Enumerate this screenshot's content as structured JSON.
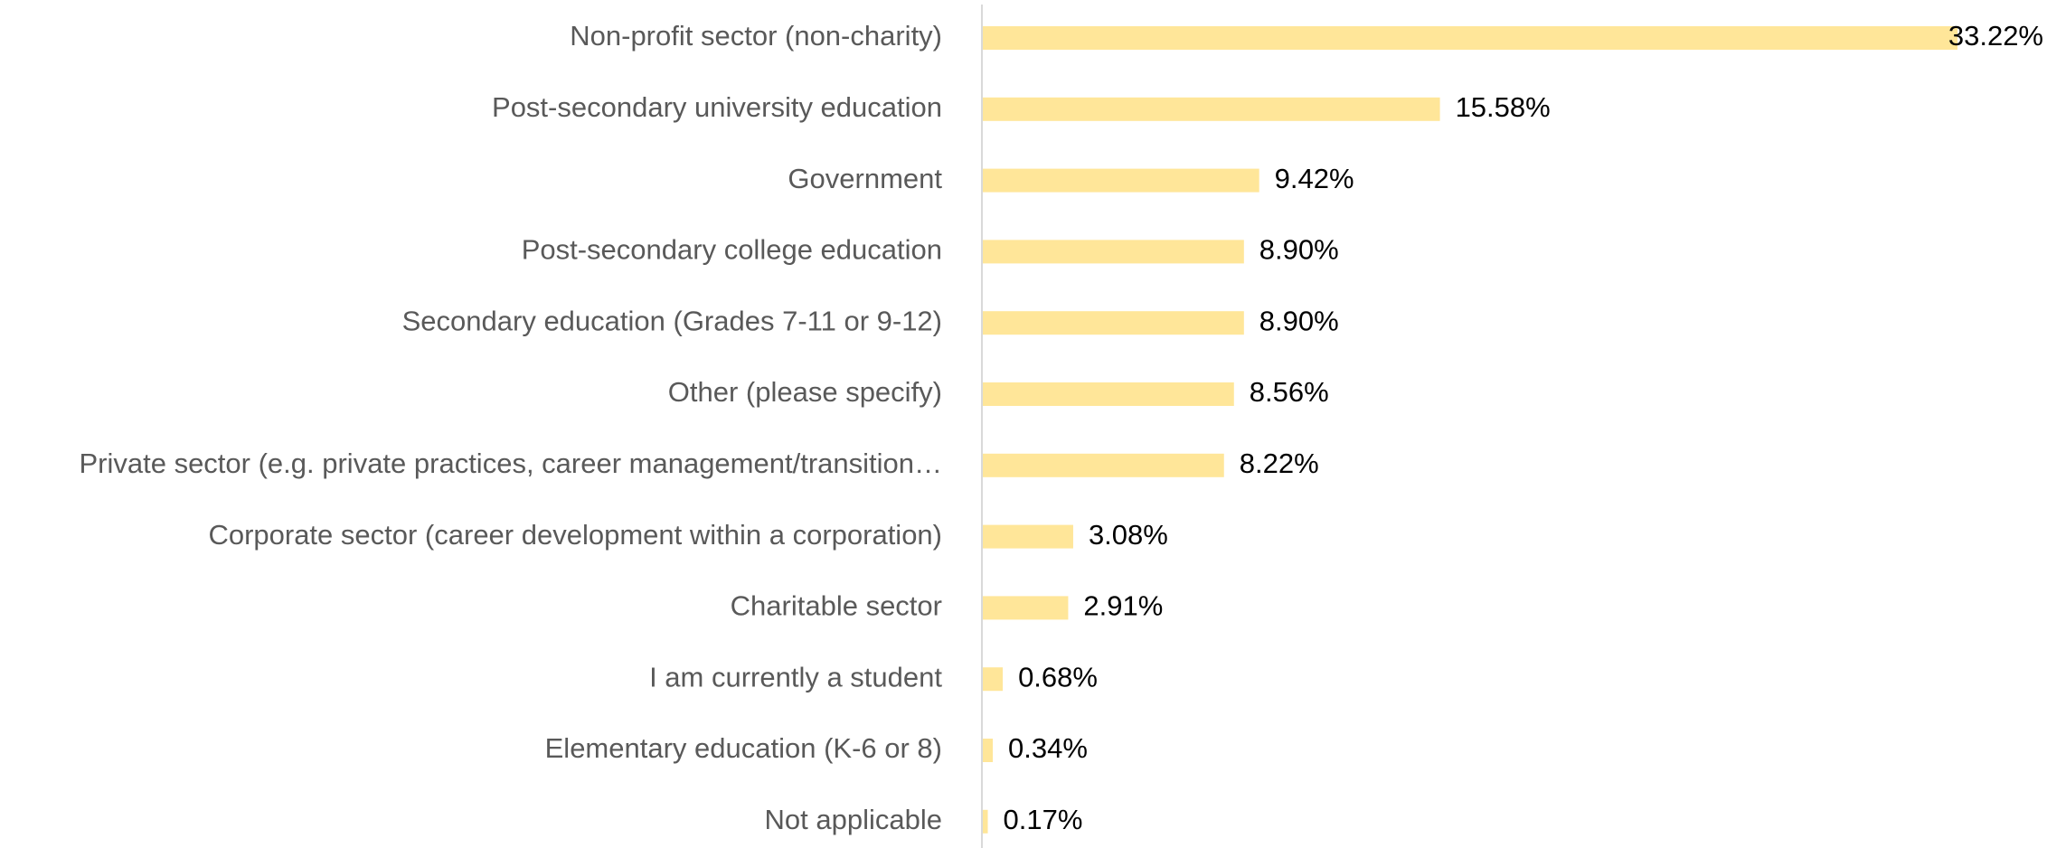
{
  "chart_data": {
    "type": "hbar",
    "categories": [
      "Non-profit sector (non-charity)",
      "Post-secondary university education",
      "Government",
      "Post-secondary college education",
      "Secondary education (Grades 7-11 or 9-12)",
      "Other (please specify)",
      "Private sector (e.g. private practices, career management/transition…",
      "Corporate sector (career development within a corporation)",
      "Charitable sector",
      "I am currently a student",
      "Elementary education (K-6 or 8)",
      "Not applicable"
    ],
    "values": [
      33.22,
      15.58,
      9.42,
      8.9,
      8.9,
      8.56,
      8.22,
      3.08,
      2.91,
      0.68,
      0.34,
      0.17
    ],
    "value_labels": [
      "33.22%",
      "15.58%",
      "9.42%",
      "8.90%",
      "8.90%",
      "8.56%",
      "8.22%",
      "3.08%",
      "2.91%",
      "0.68%",
      "0.34%",
      "0.17%"
    ],
    "color": "#FFE699"
  }
}
